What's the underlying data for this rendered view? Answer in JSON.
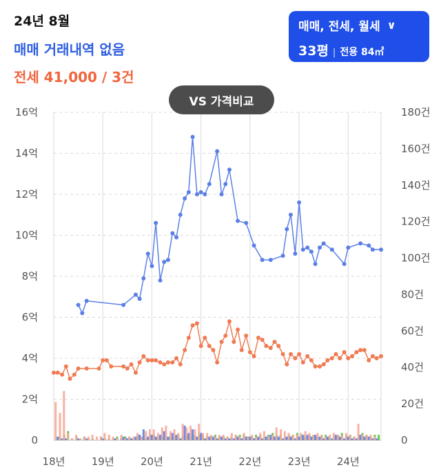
{
  "header": {
    "period": "24년 8월",
    "sale_status": "매매 거래내역 없음",
    "jeonse_status": "전세 41,000 / 3건"
  },
  "filter": {
    "trade_types": "매매, 전세, 월세",
    "pyeong": "33평",
    "separator": "|",
    "area": "전용 84㎡"
  },
  "compare_button": "VS 가격비교",
  "colors": {
    "sale": "#5b7fe6",
    "jeonse": "#f07b52",
    "volume_sale": "#5b7fe6",
    "volume_jeonse": "#f7a799",
    "volume_monthly": "#54c04a",
    "grid": "#d9d9d9"
  },
  "chart_data": {
    "type": "line",
    "x_ticks": [
      "18년",
      "19년",
      "20년",
      "21년",
      "22년",
      "23년",
      "24년"
    ],
    "y_left_ticks": [
      "0",
      "2억",
      "4억",
      "6억",
      "8억",
      "10억",
      "12억",
      "14억",
      "16억"
    ],
    "y_right_ticks": [
      "0",
      "20건",
      "40건",
      "60건",
      "80건",
      "100건",
      "120건",
      "140건",
      "160건",
      "180건"
    ],
    "ylim_left": [
      0,
      16
    ],
    "ylim_right": [
      0,
      180
    ],
    "xlim": [
      2018.0,
      2024.67
    ],
    "grid": true,
    "series": [
      {
        "key": "sale",
        "x": [
          2018.5,
          2018.58,
          2018.67,
          2019.42,
          2019.67,
          2019.75,
          2019.83,
          2019.92,
          2020.0,
          2020.08,
          2020.17,
          2020.25,
          2020.33,
          2020.42,
          2020.5,
          2020.58,
          2020.67,
          2020.75,
          2020.83,
          2020.92,
          2021.0,
          2021.08,
          2021.17,
          2021.33,
          2021.42,
          2021.5,
          2021.58,
          2021.75,
          2021.92,
          2022.08,
          2022.25,
          2022.42,
          2022.67,
          2022.75,
          2022.83,
          2022.92,
          2023.0,
          2023.08,
          2023.17,
          2023.25,
          2023.33,
          2023.42,
          2023.5,
          2023.67,
          2023.92,
          2024.0,
          2024.25,
          2024.42,
          2024.5,
          2024.67
        ],
        "values": [
          6.6,
          6.2,
          6.8,
          6.6,
          7.1,
          6.9,
          7.9,
          9.1,
          8.5,
          10.6,
          7.8,
          8.7,
          8.8,
          10.1,
          9.9,
          11.0,
          11.8,
          12.1,
          14.8,
          12.0,
          12.1,
          12.0,
          12.5,
          14.1,
          12.0,
          12.5,
          13.2,
          10.7,
          10.6,
          9.5,
          8.8,
          8.8,
          9.0,
          10.3,
          11.0,
          9.1,
          11.6,
          9.3,
          9.4,
          9.2,
          8.6,
          9.4,
          9.6,
          9.3,
          8.6,
          9.4,
          9.6,
          9.5,
          9.3,
          9.3
        ]
      },
      {
        "key": "jeonse",
        "x": [
          2018.0,
          2018.08,
          2018.17,
          2018.25,
          2018.33,
          2018.42,
          2018.5,
          2018.67,
          2018.92,
          2019.0,
          2019.08,
          2019.17,
          2019.42,
          2019.5,
          2019.58,
          2019.67,
          2019.75,
          2019.83,
          2019.92,
          2020.0,
          2020.08,
          2020.17,
          2020.25,
          2020.33,
          2020.42,
          2020.5,
          2020.58,
          2020.67,
          2020.75,
          2020.83,
          2020.92,
          2021.0,
          2021.08,
          2021.17,
          2021.25,
          2021.33,
          2021.42,
          2021.5,
          2021.58,
          2021.67,
          2021.75,
          2021.83,
          2021.92,
          2022.0,
          2022.08,
          2022.17,
          2022.25,
          2022.33,
          2022.42,
          2022.5,
          2022.58,
          2022.67,
          2022.75,
          2022.83,
          2022.92,
          2023.0,
          2023.08,
          2023.17,
          2023.25,
          2023.33,
          2023.42,
          2023.5,
          2023.58,
          2023.67,
          2023.75,
          2023.83,
          2023.92,
          2024.0,
          2024.08,
          2024.17,
          2024.25,
          2024.33,
          2024.42,
          2024.5,
          2024.58,
          2024.67
        ],
        "values": [
          3.3,
          3.3,
          3.2,
          3.6,
          3.0,
          3.2,
          3.5,
          3.5,
          3.5,
          3.9,
          3.9,
          3.6,
          3.6,
          3.5,
          3.7,
          3.3,
          3.8,
          4.1,
          3.9,
          3.9,
          3.9,
          3.8,
          3.7,
          3.8,
          3.8,
          4.0,
          3.7,
          4.4,
          5.0,
          5.6,
          5.7,
          4.6,
          5.0,
          4.6,
          4.4,
          3.8,
          4.8,
          5.1,
          5.8,
          4.8,
          5.4,
          4.4,
          5.1,
          4.3,
          4.1,
          5.0,
          4.9,
          4.6,
          4.5,
          4.8,
          4.6,
          4.2,
          3.7,
          4.2,
          4.0,
          4.2,
          3.8,
          4.1,
          3.9,
          3.6,
          3.6,
          3.7,
          3.9,
          4.0,
          4.2,
          4.0,
          4.3,
          4.0,
          4.1,
          4.3,
          4.4,
          4.4,
          3.9,
          4.1,
          4.0,
          4.1
        ]
      }
    ],
    "volume": {
      "unit": "건",
      "x": [
        2018.08,
        2018.17,
        2018.25,
        2018.33,
        2018.42,
        2018.5,
        2018.58,
        2018.67,
        2018.75,
        2018.83,
        2018.92,
        2019.0,
        2019.08,
        2019.17,
        2019.25,
        2019.33,
        2019.42,
        2019.5,
        2019.58,
        2019.67,
        2019.75,
        2019.83,
        2019.92,
        2020.0,
        2020.08,
        2020.17,
        2020.25,
        2020.33,
        2020.42,
        2020.5,
        2020.58,
        2020.67,
        2020.75,
        2020.83,
        2020.92,
        2021.0,
        2021.08,
        2021.17,
        2021.25,
        2021.33,
        2021.42,
        2021.5,
        2021.58,
        2021.67,
        2021.75,
        2021.83,
        2021.92,
        2022.0,
        2022.08,
        2022.17,
        2022.25,
        2022.33,
        2022.42,
        2022.5,
        2022.58,
        2022.67,
        2022.75,
        2022.83,
        2022.92,
        2023.0,
        2023.08,
        2023.17,
        2023.25,
        2023.33,
        2023.42,
        2023.5,
        2023.58,
        2023.67,
        2023.75,
        2023.83,
        2023.92,
        2024.0,
        2024.08,
        2024.17,
        2024.25,
        2024.33,
        2024.42,
        2024.5,
        2024.58
      ],
      "sale": [
        2,
        1,
        1,
        0,
        0,
        1,
        0,
        1,
        0,
        0,
        0,
        1,
        0,
        0,
        1,
        0,
        2,
        1,
        1,
        2,
        3,
        6,
        2,
        3,
        2,
        3,
        5,
        2,
        4,
        3,
        1,
        8,
        4,
        6,
        2,
        4,
        1,
        2,
        2,
        1,
        2,
        1,
        1,
        1,
        2,
        1,
        2,
        2,
        1,
        2,
        1,
        2,
        3,
        2,
        2,
        1,
        2,
        2,
        1,
        2,
        3,
        3,
        2,
        3,
        2,
        1,
        2,
        1,
        3,
        2,
        1,
        2,
        1,
        1,
        3,
        2,
        2,
        1,
        1
      ],
      "jeonse": [
        21,
        15,
        27,
        4,
        1,
        3,
        1,
        2,
        2,
        3,
        2,
        2,
        4,
        3,
        2,
        1,
        3,
        1,
        2,
        2,
        4,
        2,
        5,
        6,
        6,
        4,
        7,
        8,
        5,
        6,
        4,
        9,
        7,
        8,
        6,
        9,
        4,
        4,
        3,
        2,
        3,
        3,
        2,
        4,
        3,
        2,
        4,
        2,
        3,
        2,
        4,
        5,
        2,
        3,
        7,
        6,
        5,
        4,
        3,
        3,
        4,
        5,
        4,
        3,
        4,
        3,
        2,
        3,
        4,
        3,
        3,
        4,
        3,
        2,
        9,
        3,
        3,
        3,
        2
      ],
      "monthly": [
        2,
        3,
        5,
        1,
        2,
        1,
        2,
        1,
        1,
        0,
        2,
        1,
        1,
        1,
        2,
        1,
        2,
        2,
        1,
        3,
        2,
        1,
        3,
        3,
        2,
        2,
        1,
        2,
        2,
        3,
        2,
        3,
        2,
        3,
        3,
        3,
        2,
        2,
        3,
        2,
        2,
        2,
        2,
        3,
        3,
        3,
        2,
        2,
        3,
        3,
        2,
        3,
        4,
        3,
        3,
        2,
        3,
        3,
        4,
        3,
        2,
        3,
        3,
        2,
        3,
        3,
        2,
        2,
        3,
        4,
        3,
        3,
        2,
        3,
        4,
        3,
        2,
        3,
        3
      ]
    }
  }
}
